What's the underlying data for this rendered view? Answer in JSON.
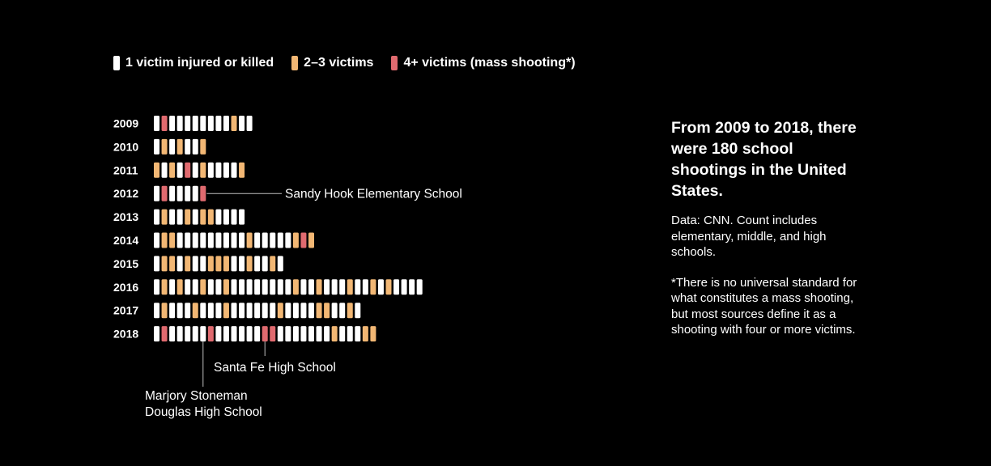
{
  "colors": {
    "background": "#000000",
    "single": "#ffffff",
    "few": "#f2b774",
    "mass": "#e06a6f",
    "annotation_line": "#bfbfbf"
  },
  "legend": [
    {
      "key": "single",
      "label": "1 victim injured or killed"
    },
    {
      "key": "few",
      "label": "2–3 victims"
    },
    {
      "key": "mass",
      "label": "4+ victims (mass shooting*)"
    }
  ],
  "chart_data": {
    "type": "unit-bar",
    "categories": [
      "2009",
      "2010",
      "2011",
      "2012",
      "2013",
      "2014",
      "2015",
      "2016",
      "2017",
      "2018"
    ],
    "legend_position": "top-left",
    "units": [
      {
        "year": "2009",
        "victims": [
          "single",
          "mass",
          "single",
          "single",
          "single",
          "single",
          "single",
          "single",
          "single",
          "single",
          "few",
          "single",
          "single"
        ]
      },
      {
        "year": "2010",
        "victims": [
          "single",
          "few",
          "single",
          "few",
          "single",
          "single",
          "few"
        ]
      },
      {
        "year": "2011",
        "victims": [
          "few",
          "single",
          "few",
          "single",
          "mass",
          "single",
          "few",
          "single",
          "single",
          "single",
          "single",
          "few"
        ]
      },
      {
        "year": "2012",
        "victims": [
          "single",
          "mass",
          "single",
          "single",
          "single",
          "single",
          "mass"
        ]
      },
      {
        "year": "2013",
        "victims": [
          "single",
          "few",
          "single",
          "single",
          "few",
          "single",
          "few",
          "few",
          "single",
          "single",
          "single",
          "single"
        ]
      },
      {
        "year": "2014",
        "victims": [
          "single",
          "few",
          "few",
          "single",
          "single",
          "single",
          "single",
          "single",
          "single",
          "single",
          "single",
          "single",
          "few",
          "single",
          "single",
          "single",
          "single",
          "single",
          "few",
          "mass",
          "few"
        ]
      },
      {
        "year": "2015",
        "victims": [
          "single",
          "few",
          "few",
          "single",
          "few",
          "single",
          "single",
          "few",
          "few",
          "few",
          "single",
          "single",
          "few",
          "single",
          "single",
          "few",
          "single"
        ]
      },
      {
        "year": "2016",
        "victims": [
          "single",
          "few",
          "single",
          "few",
          "single",
          "single",
          "few",
          "single",
          "single",
          "few",
          "single",
          "single",
          "single",
          "single",
          "single",
          "single",
          "single",
          "single",
          "few",
          "single",
          "single",
          "few",
          "single",
          "single",
          "single",
          "few",
          "single",
          "single",
          "few",
          "single",
          "few",
          "single",
          "single",
          "single",
          "single"
        ]
      },
      {
        "year": "2017",
        "victims": [
          "single",
          "few",
          "single",
          "single",
          "single",
          "few",
          "single",
          "single",
          "single",
          "few",
          "single",
          "single",
          "single",
          "single",
          "single",
          "single",
          "few",
          "single",
          "single",
          "single",
          "single",
          "few",
          "few",
          "single",
          "single",
          "few",
          "single"
        ]
      },
      {
        "year": "2018",
        "victims": [
          "single",
          "mass",
          "single",
          "single",
          "single",
          "single",
          "single",
          "mass",
          "single",
          "single",
          "single",
          "single",
          "single",
          "single",
          "mass",
          "mass",
          "single",
          "single",
          "single",
          "single",
          "single",
          "single",
          "single",
          "few",
          "single",
          "single",
          "single",
          "few",
          "few"
        ]
      }
    ],
    "annotations": [
      {
        "label": "Sandy Hook Elementary School",
        "year": "2012",
        "unit_index": 6
      },
      {
        "label": "Santa Fe High School",
        "year": "2018",
        "unit_index": 14
      },
      {
        "label_lines": [
          "Marjory Stoneman",
          "Douglas High School"
        ],
        "year": "2018",
        "unit_index": 6
      }
    ]
  },
  "side_panel": {
    "heading": "From 2009 to 2018, there were 180 school shootings in the United States.",
    "source_note": "Data: CNN. Count includes elementary, middle, and high schools.",
    "footnote": "*There is no universal standard for what constitutes a mass shooting, but most sources define it as a shooting with four or more victims."
  }
}
